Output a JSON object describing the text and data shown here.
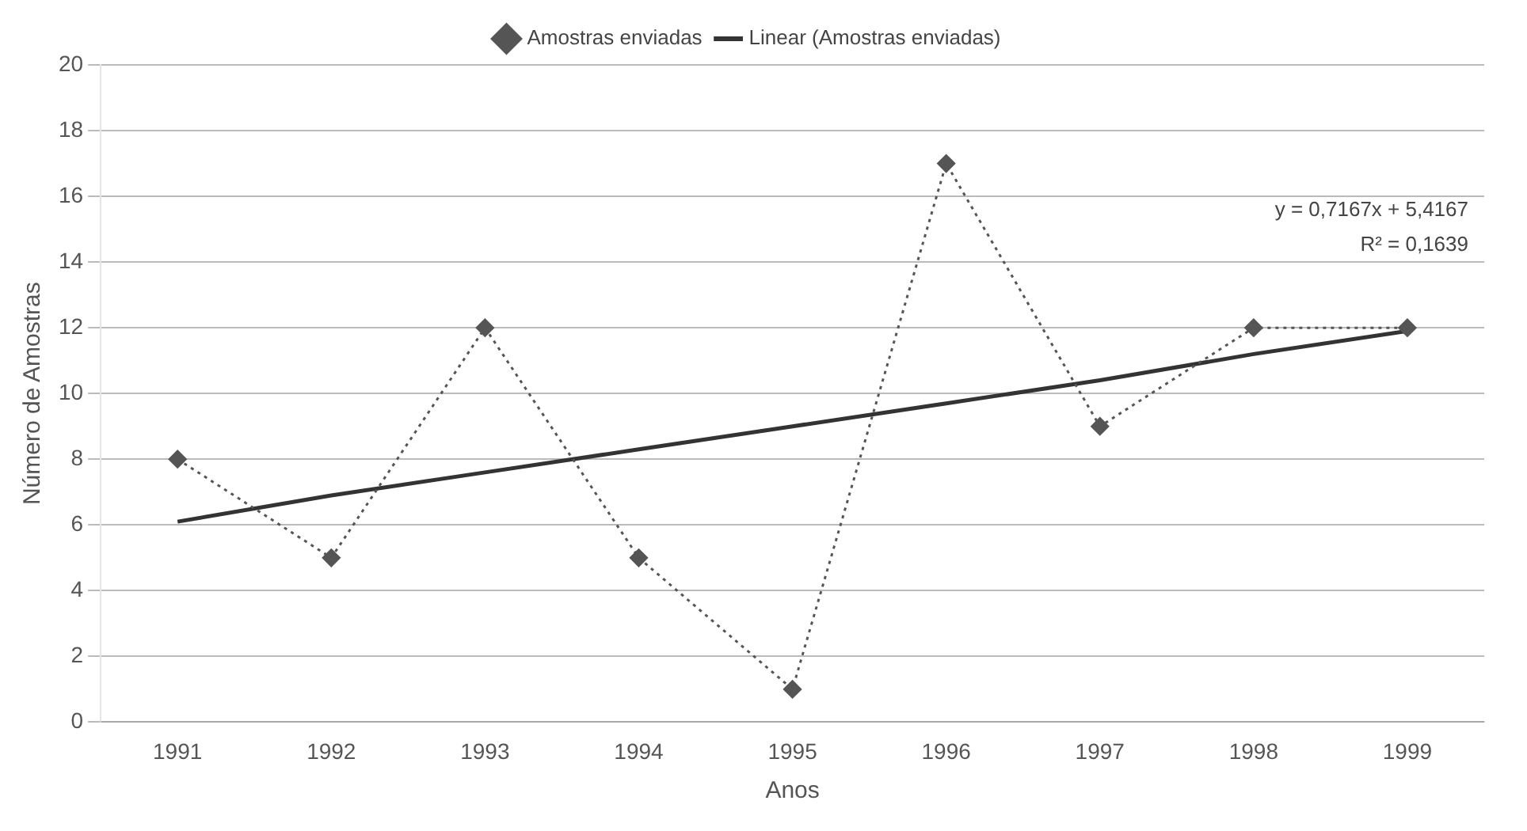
{
  "chart_data": {
    "type": "line",
    "xlabel": "Anos",
    "ylabel": "Número de Amostras",
    "categories": [
      "1991",
      "1992",
      "1993",
      "1994",
      "1995",
      "1996",
      "1997",
      "1998",
      "1999"
    ],
    "series": [
      {
        "name": "Amostras enviadas",
        "color": "#555555",
        "values": [
          8,
          5,
          12,
          5,
          1,
          17,
          9,
          12,
          12
        ],
        "line_style": "dotted",
        "marker": "diamond"
      },
      {
        "name": "Linear (Amostras enviadas)",
        "color": "#333333",
        "values": [
          6.1,
          6.9,
          7.6,
          8.3,
          9.0,
          9.7,
          10.4,
          11.2,
          11.9
        ],
        "line_style": "solid",
        "marker": "none"
      }
    ],
    "ylim": [
      0,
      20
    ],
    "yticks": [
      0,
      2,
      4,
      6,
      8,
      10,
      12,
      14,
      16,
      18,
      20
    ],
    "grid": "y",
    "legend": "top",
    "annotations": [
      "y = 0,7167x + 5,4167",
      "R² = 0,1639"
    ]
  }
}
